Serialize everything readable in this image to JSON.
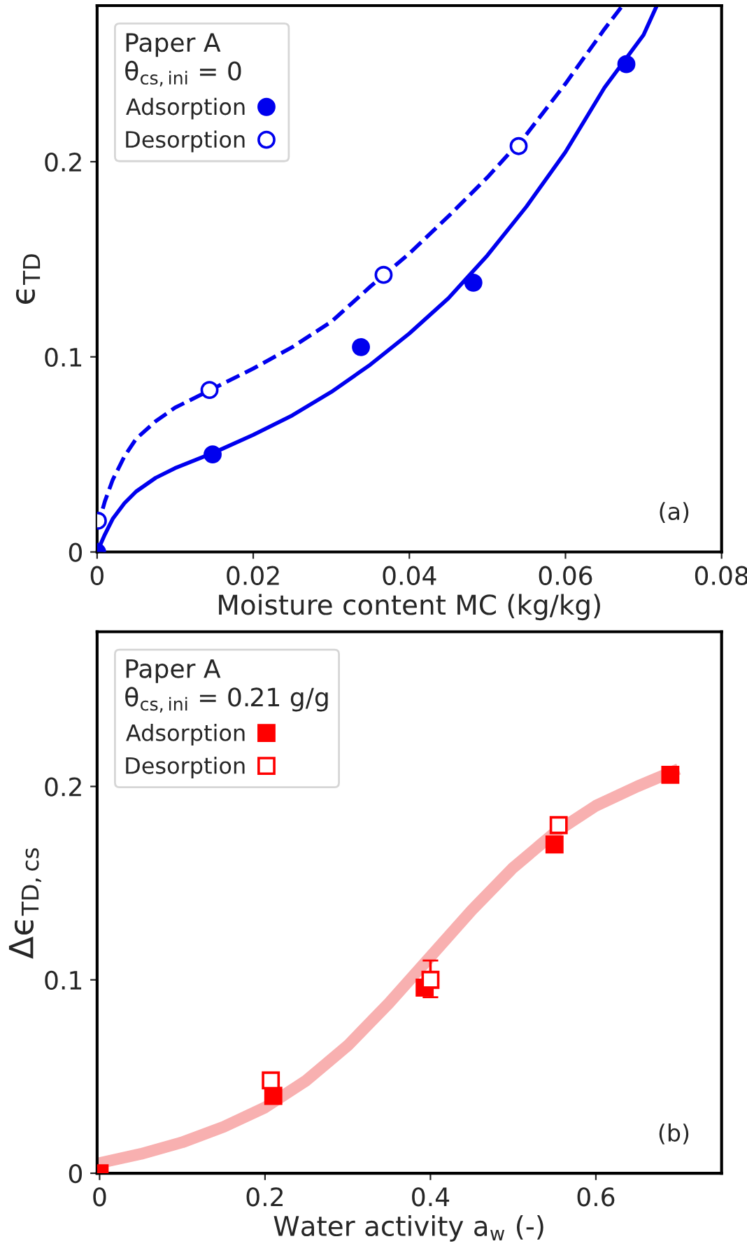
{
  "chart_data": [
    {
      "type": "scatter",
      "xlabel": "Moisture content MC (kg/kg)",
      "ylabel": "ϵ$_{TD}$",
      "legend_title": "Paper A\nθ$_{cs,ini}$ = 0",
      "legend": "top left",
      "xlim": [
        0,
        0.08
      ],
      "ylim": [
        0,
        0.28
      ],
      "xticks": [
        0,
        0.02,
        0.04,
        0.06,
        0.08
      ],
      "yticks": [
        0,
        0.1,
        0.2
      ],
      "annotations": [
        "(a)"
      ],
      "series": [
        {
          "type": "line",
          "color": "#0000ee",
          "line_style": "solid",
          "x": [
            0,
            0.001,
            0.002,
            0.0035,
            0.005,
            0.0075,
            0.01,
            0.015,
            0.02,
            0.025,
            0.03,
            0.035,
            0.04,
            0.045,
            0.05,
            0.055,
            0.06,
            0.065,
            0.07,
            0.0717
          ],
          "values": [
            0,
            0.009,
            0.017,
            0.025,
            0.031,
            0.038,
            0.043,
            0.051,
            0.06,
            0.07,
            0.082,
            0.096,
            0.112,
            0.13,
            0.152,
            0.177,
            0.205,
            0.238,
            0.265,
            0.28
          ]
        },
        {
          "type": "line",
          "color": "#0000ee",
          "line_style": "dashed",
          "x": [
            0,
            0.001,
            0.002,
            0.0035,
            0.005,
            0.0075,
            0.01,
            0.015,
            0.02,
            0.025,
            0.03,
            0.035,
            0.04,
            0.045,
            0.05,
            0.055,
            0.06,
            0.065,
            0.0673
          ],
          "values": [
            0.012,
            0.026,
            0.037,
            0.049,
            0.058,
            0.067,
            0.074,
            0.084,
            0.094,
            0.105,
            0.118,
            0.136,
            0.153,
            0.172,
            0.192,
            0.214,
            0.24,
            0.268,
            0.28
          ]
        },
        {
          "name": "Adsorption",
          "color": "#0000ee",
          "marker": "circle",
          "x": [
            0,
            0.0148,
            0.0338,
            0.0482,
            0.0678
          ],
          "values": [
            0,
            0.05,
            0.105,
            0.138,
            0.25
          ]
        },
        {
          "name": "Desorption",
          "color": "#0000ee",
          "marker": "circle",
          "x": [
            0.0001,
            0.0144,
            0.0367,
            0.054
          ],
          "values": [
            0.016,
            0.083,
            0.142,
            0.208
          ]
        }
      ]
    },
    {
      "type": "scatter",
      "xlabel": "Water activity a$_{w}$ (-)",
      "ylabel": "Δϵ$_{TD,cs}$",
      "legend_title": "Paper A\nθ$_{cs,ini}$ = 0.21 g/g",
      "legend": "top left",
      "xlim": [
        -0.003,
        0.752
      ],
      "ylim": [
        0,
        0.28
      ],
      "xticks": [
        0,
        0.2,
        0.4,
        0.6
      ],
      "yticks": [
        0,
        0.1,
        0.2
      ],
      "annotations": [
        "(b)"
      ],
      "series": [
        {
          "type": "line",
          "color": "#f8b0b0",
          "line_style": "solid",
          "x": [
            -0.003,
            0.05,
            0.1,
            0.15,
            0.2,
            0.25,
            0.3,
            0.35,
            0.4,
            0.45,
            0.5,
            0.55,
            0.6,
            0.65,
            0.7
          ],
          "values": [
            0.005,
            0.01,
            0.016,
            0.024,
            0.034,
            0.048,
            0.066,
            0.088,
            0.112,
            0.136,
            0.158,
            0.176,
            0.19,
            0.2,
            0.209
          ]
        },
        {
          "name": "Adsorption",
          "color": "#ff0000",
          "marker": "square",
          "x": [
            0,
            0.21,
            0.393,
            0.55,
            0.69
          ],
          "values": [
            0,
            0.04,
            0.096,
            0.17,
            0.206
          ]
        },
        {
          "name": "Desorption",
          "color": "#ff0000",
          "marker": "square",
          "x": [
            0.207,
            0.4,
            0.555
          ],
          "values": [
            0.048,
            0.1,
            0.18
          ],
          "errors": [
            null,
            [
              0.091,
              0.11
            ],
            null
          ]
        }
      ]
    }
  ]
}
